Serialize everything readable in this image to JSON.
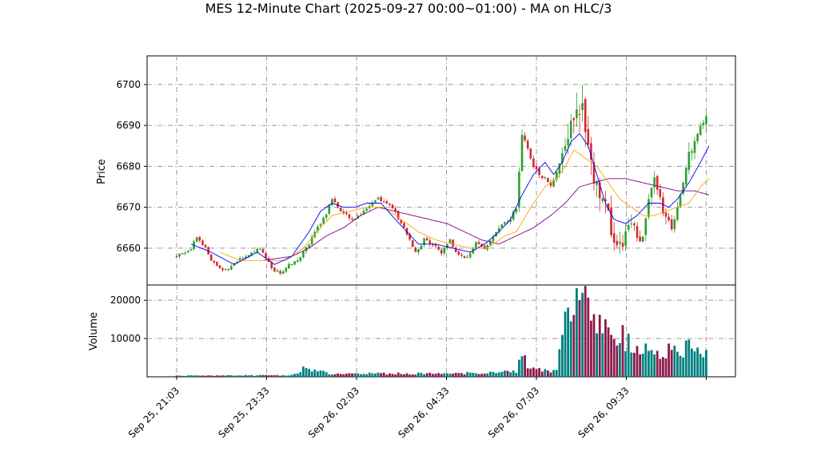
{
  "chart_data": {
    "type": "candlestick",
    "title": "MES 12-Minute Chart (2025-09-27 00:00~01:00) - MA on HLC/3",
    "price_panel": {
      "ylabel": "Price",
      "ylim": [
        6651,
        6707
      ],
      "yticks": [
        6660,
        6670,
        6680,
        6690,
        6700
      ],
      "grid": true
    },
    "volume_panel": {
      "ylabel": "Volume",
      "ylim": [
        0,
        24000
      ],
      "yticks": [
        10000,
        20000
      ],
      "grid": true
    },
    "x_ticks": [
      "Sep 25, 21:03",
      "Sep 25, 23:33",
      "Sep 26, 02:03",
      "Sep 26, 04:33",
      "Sep 26, 07:03",
      "Sep 26, 09:33"
    ],
    "colors": {
      "up": "#2ca02c",
      "down": "#d62728",
      "vol_up": "#008080",
      "vol_down": "#8b1a4a",
      "ma_fast": "#0000ff",
      "ma_mid": "#ffa500",
      "ma_slow": "#800080"
    },
    "close_path": [
      [
        0,
        6658
      ],
      [
        5,
        6660
      ],
      [
        7,
        6663
      ],
      [
        10,
        6660
      ],
      [
        12,
        6657
      ],
      [
        15,
        6655
      ],
      [
        18,
        6655
      ],
      [
        21,
        6657
      ],
      [
        25,
        6658
      ],
      [
        28,
        6660
      ],
      [
        30,
        6659
      ],
      [
        33,
        6655
      ],
      [
        36,
        6654
      ],
      [
        39,
        6656
      ],
      [
        42,
        6657
      ],
      [
        45,
        6660
      ],
      [
        48,
        6664
      ],
      [
        51,
        6667
      ],
      [
        54,
        6672
      ],
      [
        56,
        6670
      ],
      [
        59,
        6668
      ],
      [
        62,
        6667
      ],
      [
        66,
        6670
      ],
      [
        70,
        6672
      ],
      [
        73,
        6671
      ],
      [
        75,
        6670
      ],
      [
        78,
        6666
      ],
      [
        81,
        6662
      ],
      [
        83,
        6659
      ],
      [
        86,
        6662
      ],
      [
        89,
        6661
      ],
      [
        92,
        6659
      ],
      [
        95,
        6662
      ],
      [
        98,
        6658
      ],
      [
        101,
        6658
      ],
      [
        104,
        6661
      ],
      [
        107,
        6660
      ],
      [
        110,
        6663
      ],
      [
        113,
        6666
      ],
      [
        116,
        6667
      ],
      [
        118,
        6670
      ],
      [
        120,
        6688
      ],
      [
        122,
        6685
      ],
      [
        124,
        6680
      ],
      [
        126,
        6678
      ],
      [
        128,
        6677
      ],
      [
        130,
        6675
      ],
      [
        132,
        6679
      ],
      [
        134,
        6683
      ],
      [
        136,
        6688
      ],
      [
        138,
        6693
      ],
      [
        140,
        6696
      ],
      [
        142,
        6690
      ],
      [
        144,
        6680
      ],
      [
        146,
        6675
      ],
      [
        148,
        6673
      ],
      [
        150,
        6668
      ],
      [
        152,
        6662
      ],
      [
        154,
        6660
      ],
      [
        156,
        6663
      ],
      [
        158,
        6667
      ],
      [
        160,
        6662
      ],
      [
        162,
        6664
      ],
      [
        164,
        6672
      ],
      [
        166,
        6676
      ],
      [
        168,
        6672
      ],
      [
        170,
        6667
      ],
      [
        172,
        6665
      ],
      [
        174,
        6669
      ],
      [
        176,
        6676
      ],
      [
        178,
        6682
      ],
      [
        180,
        6686
      ],
      [
        182,
        6689
      ],
      [
        184,
        6693
      ]
    ],
    "volume_path": [
      [
        0,
        300
      ],
      [
        40,
        400
      ],
      [
        44,
        2000
      ],
      [
        55,
        700
      ],
      [
        60,
        800
      ],
      [
        100,
        900
      ],
      [
        118,
        1500
      ],
      [
        120,
        6500
      ],
      [
        122,
        3000
      ],
      [
        127,
        2000
      ],
      [
        130,
        1500
      ],
      [
        132,
        2000
      ],
      [
        134,
        14000
      ],
      [
        136,
        17000
      ],
      [
        138,
        15000
      ],
      [
        140,
        22000
      ],
      [
        142,
        18000
      ],
      [
        145,
        15000
      ],
      [
        150,
        13000
      ],
      [
        154,
        11000
      ],
      [
        158,
        9000
      ],
      [
        162,
        7000
      ],
      [
        166,
        8000
      ],
      [
        168,
        6000
      ],
      [
        172,
        7000
      ],
      [
        175,
        5000
      ],
      [
        178,
        9000
      ],
      [
        180,
        7000
      ],
      [
        182,
        5000
      ],
      [
        184,
        6000
      ]
    ],
    "ma_fast_path": [
      [
        5,
        6661
      ],
      [
        12,
        6659
      ],
      [
        20,
        6656
      ],
      [
        28,
        6659
      ],
      [
        34,
        6656
      ],
      [
        40,
        6658
      ],
      [
        46,
        6664
      ],
      [
        50,
        6669
      ],
      [
        54,
        6671
      ],
      [
        58,
        6670
      ],
      [
        62,
        6670
      ],
      [
        66,
        6671
      ],
      [
        71,
        6671
      ],
      [
        76,
        6667
      ],
      [
        80,
        6664
      ],
      [
        84,
        6661
      ],
      [
        90,
        6661
      ],
      [
        96,
        6660
      ],
      [
        102,
        6659
      ],
      [
        107,
        6661
      ],
      [
        112,
        6664
      ],
      [
        116,
        6667
      ],
      [
        120,
        6673
      ],
      [
        124,
        6678
      ],
      [
        128,
        6681
      ],
      [
        131,
        6678
      ],
      [
        134,
        6681
      ],
      [
        137,
        6686
      ],
      [
        140,
        6688
      ],
      [
        143,
        6685
      ],
      [
        146,
        6678
      ],
      [
        149,
        6671
      ],
      [
        152,
        6667
      ],
      [
        156,
        6666
      ],
      [
        160,
        6668
      ],
      [
        164,
        6671
      ],
      [
        168,
        6671
      ],
      [
        171,
        6670
      ],
      [
        174,
        6672
      ],
      [
        178,
        6676
      ],
      [
        182,
        6681
      ],
      [
        185,
        6685
      ]
    ],
    "ma_mid_path": [
      [
        15,
        6659
      ],
      [
        22,
        6657
      ],
      [
        30,
        6657
      ],
      [
        38,
        6657
      ],
      [
        44,
        6660
      ],
      [
        50,
        6665
      ],
      [
        54,
        6668
      ],
      [
        60,
        6669
      ],
      [
        66,
        6670
      ],
      [
        72,
        6670
      ],
      [
        78,
        6667
      ],
      [
        84,
        6664
      ],
      [
        90,
        6662
      ],
      [
        96,
        6661
      ],
      [
        102,
        6660
      ],
      [
        108,
        6660
      ],
      [
        114,
        6663
      ],
      [
        118,
        6664
      ],
      [
        124,
        6671
      ],
      [
        128,
        6675
      ],
      [
        132,
        6677
      ],
      [
        135,
        6680
      ],
      [
        138,
        6684
      ],
      [
        142,
        6682
      ],
      [
        146,
        6680
      ],
      [
        150,
        6676
      ],
      [
        154,
        6672
      ],
      [
        158,
        6670
      ],
      [
        162,
        6668
      ],
      [
        166,
        6668
      ],
      [
        170,
        6669
      ],
      [
        174,
        6670
      ],
      [
        178,
        6671
      ],
      [
        182,
        6675
      ],
      [
        185,
        6677
      ]
    ],
    "ma_slow_path": [
      [
        30,
        6657
      ],
      [
        40,
        6658
      ],
      [
        46,
        6660
      ],
      [
        52,
        6663
      ],
      [
        58,
        6665
      ],
      [
        64,
        6668
      ],
      [
        70,
        6670
      ],
      [
        76,
        6669
      ],
      [
        82,
        6668
      ],
      [
        88,
        6667
      ],
      [
        94,
        6666
      ],
      [
        100,
        6664
      ],
      [
        106,
        6662
      ],
      [
        112,
        6661
      ],
      [
        118,
        6663
      ],
      [
        124,
        6665
      ],
      [
        130,
        6668
      ],
      [
        135,
        6671
      ],
      [
        140,
        6675
      ],
      [
        145,
        6676
      ],
      [
        150,
        6677
      ],
      [
        156,
        6677
      ],
      [
        162,
        6676
      ],
      [
        168,
        6675
      ],
      [
        174,
        6674
      ],
      [
        180,
        6674
      ],
      [
        185,
        6673
      ]
    ]
  }
}
